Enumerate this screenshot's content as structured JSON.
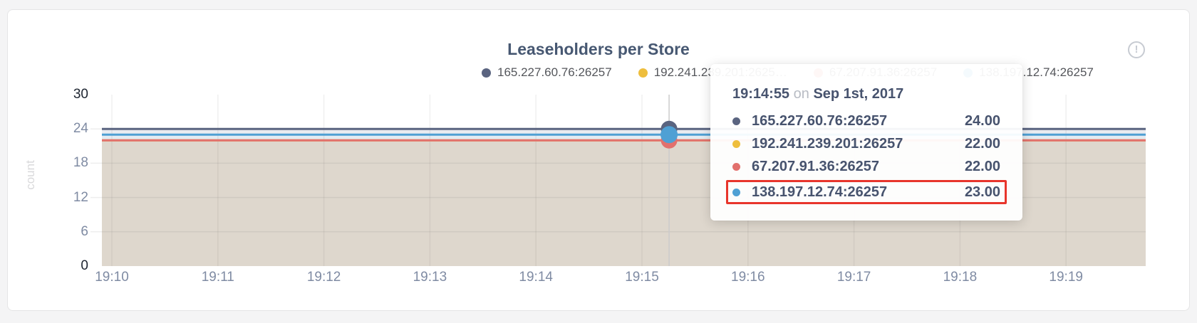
{
  "card": {
    "title": "Leaseholders per Store",
    "info_icon_glyph": "!"
  },
  "legend": {
    "items": [
      {
        "label": "165.227.60.76:26257",
        "color": "#5a6480"
      },
      {
        "label": "192.241.239.201:2625…",
        "color": "#eebe3d"
      },
      {
        "label": "67.207.91.36:26257",
        "color": "#e2706d"
      },
      {
        "label": "138.197.12.74:26257",
        "color": "#4fa0d4"
      }
    ]
  },
  "tooltip": {
    "time": "19:14:55",
    "conjunction": "on",
    "date": "Sep 1st, 2017",
    "highlight_color": "#e8352c",
    "rows": [
      {
        "label": "165.227.60.76:26257",
        "value": "24.00",
        "color": "#5a6480",
        "highlighted": false
      },
      {
        "label": "192.241.239.201:26257",
        "value": "22.00",
        "color": "#eebe3d",
        "highlighted": false
      },
      {
        "label": "67.207.91.36:26257",
        "value": "22.00",
        "color": "#e2706d",
        "highlighted": false
      },
      {
        "label": "138.197.12.74:26257",
        "value": "23.00",
        "color": "#4fa0d4",
        "highlighted": true
      }
    ]
  },
  "chart_data": {
    "type": "line",
    "title": "Leaseholders per Store",
    "xlabel": "",
    "ylabel": "count",
    "ylim": [
      0,
      30
    ],
    "yticks": [
      {
        "label": "0",
        "value": 0,
        "strong": true
      },
      {
        "label": "6",
        "value": 6,
        "strong": false
      },
      {
        "label": "12",
        "value": 12,
        "strong": false
      },
      {
        "label": "18",
        "value": 18,
        "strong": false
      },
      {
        "label": "24",
        "value": 24,
        "strong": false
      },
      {
        "label": "30",
        "value": 30,
        "strong": true
      }
    ],
    "xticks": [
      "19:10",
      "19:11",
      "19:12",
      "19:13",
      "19:14",
      "19:15",
      "19:16",
      "19:17",
      "19:18",
      "19:19"
    ],
    "grid": true,
    "legend_position": "top",
    "series": [
      {
        "name": "165.227.60.76:26257",
        "color": "#5a6480",
        "value": 24,
        "hover_value": 24.0
      },
      {
        "name": "192.241.239.201:26257",
        "color": "#eebe3d",
        "value": 22,
        "hover_value": 22.0
      },
      {
        "name": "67.207.91.36:26257",
        "color": "#e2706d",
        "value": 22,
        "hover_value": 22.0
      },
      {
        "name": "138.197.12.74:26257",
        "color": "#4fa0d4",
        "value": 23,
        "hover_value": 23.0
      }
    ],
    "area_bands": [
      {
        "from": 24,
        "to": 23,
        "color": "#e9ebf0"
      },
      {
        "from": 23,
        "to": 22,
        "color": "#e3ebf2"
      },
      {
        "from": 22,
        "to": 0,
        "color": "#ded7cd"
      }
    ],
    "hover": {
      "time": "19:14:55",
      "date": "Sep 1st, 2017",
      "x_fraction": 0.5434
    }
  }
}
